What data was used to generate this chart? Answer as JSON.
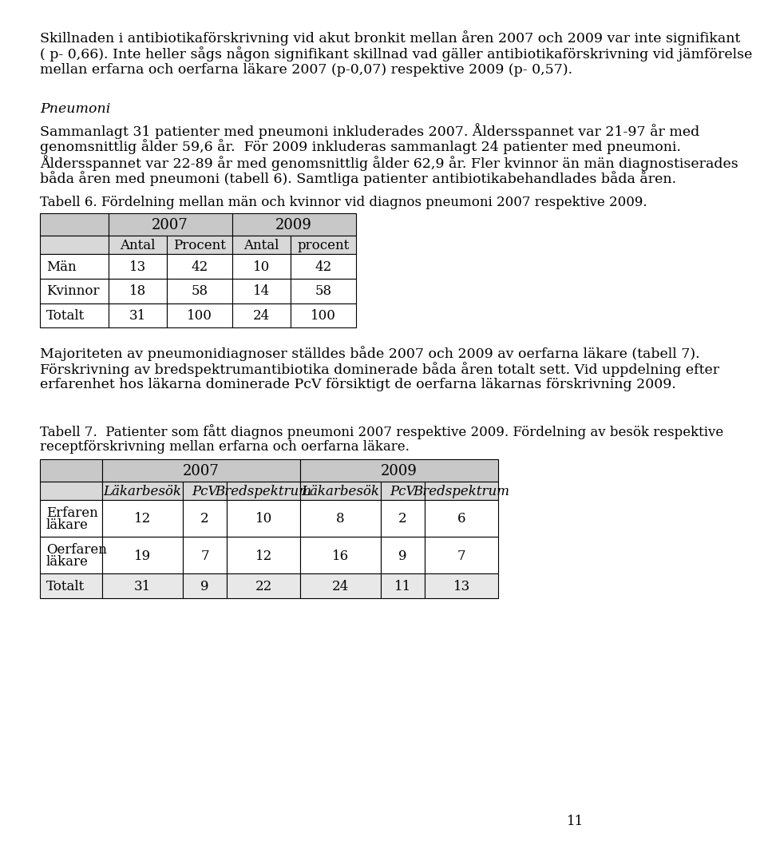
{
  "bg_color": "#ffffff",
  "text_color": "#000000",
  "page_number": "11",
  "intro_text_lines": [
    "Skillnaden i antibiotikaförskrivning vid akut bronkit mellan åren 2007 och 2009 var inte signifikant",
    "( p- 0,66). Inte heller sågs någon signifikant skillnad vad gäller antibiotikaförskrivning vid jämförelse",
    "mellan erfarna och oerfarna läkare 2007 (p-0,07) respektive 2009 (p- 0,57)."
  ],
  "section_heading": "Pneumoni",
  "section_text_lines": [
    "Sammanlagt 31 patienter med pneumoni inkluderades 2007. Åldersspannet var 21-97 år med",
    "genomsnittlig ålder 59,6 år.  För 2009 inkluderas sammanlagt 24 patienter med pneumoni.",
    "Åldersspannet var 22-89 år med genomsnittlig ålder 62,9 år. Fler kvinnor än män diagnostiserades",
    "båda åren med pneumoni (tabell 6). Samtliga patienter antibiotikabehandlades båda åren."
  ],
  "table6_caption_lines": [
    "Tabell 6. Fördelning mellan män och kvinnor vid diagnos pneumoni 2007 respektive 2009."
  ],
  "table6_rows": [
    [
      "Män",
      "13",
      "42",
      "10",
      "42"
    ],
    [
      "Kvinnor",
      "18",
      "58",
      "14",
      "58"
    ],
    [
      "Totalt",
      "31",
      "100",
      "24",
      "100"
    ]
  ],
  "mid_text_lines": [
    "Majoriteten av pneumonidiagnoser ställdes både 2007 och 2009 av oerfarna läkare (tabell 7).",
    "Förskrivning av bredspektrumantibiotika dominerade båda åren totalt sett. Vid uppdelning efter",
    "erfarenhet hos läkarna dominerade PcV försiktigt de oerfarna läkarnas förskrivning 2009."
  ],
  "table7_caption_lines": [
    "Tabell 7.  Patienter som fått diagnos pneumoni 2007 respektive 2009. Fördelning av besök respektive",
    "receptförskrivning mellan erfarna och oerfarna läkare."
  ],
  "table7_rows": [
    [
      "Erfaren\nläkare",
      "12",
      "2",
      "10",
      "8",
      "2",
      "6"
    ],
    [
      "Oerfaren\nläkare",
      "19",
      "7",
      "12",
      "16",
      "9",
      "7"
    ],
    [
      "Totalt",
      "31",
      "9",
      "22",
      "24",
      "11",
      "13"
    ]
  ],
  "header_bg": "#c8c8c8",
  "subheader_bg": "#d8d8d8",
  "row_bg_even": "#ffffff",
  "row_bg_odd": "#ffffff",
  "total_bg": "#e8e8e8",
  "body_fontsize": 12.5,
  "caption_fontsize": 12,
  "heading_fontsize": 12.5,
  "table_fontsize": 12
}
